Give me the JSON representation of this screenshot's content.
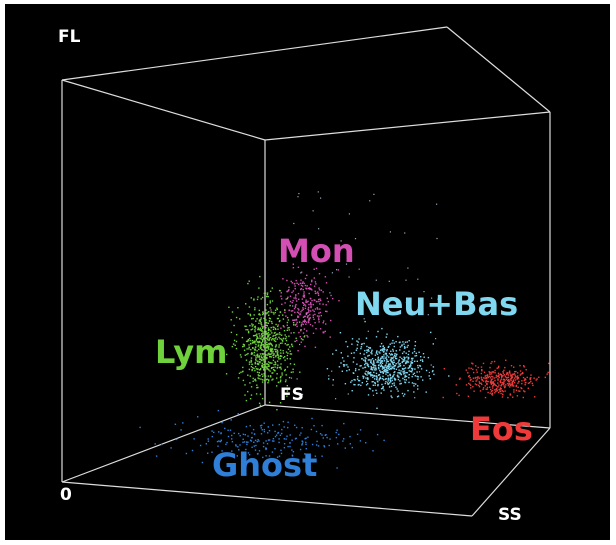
{
  "axes": {
    "vertical": "FL",
    "depth": "FS",
    "horizontal": "SS",
    "origin": "0"
  },
  "clusters": [
    {
      "label": "Mon",
      "color": "#d44fb4"
    },
    {
      "label": "Neu+Bas",
      "color": "#7fd8f0"
    },
    {
      "label": "Lym",
      "color": "#6fd23c"
    },
    {
      "label": "Eos",
      "color": "#f03a3a"
    },
    {
      "label": "Ghost",
      "color": "#2f7fd8"
    }
  ]
}
